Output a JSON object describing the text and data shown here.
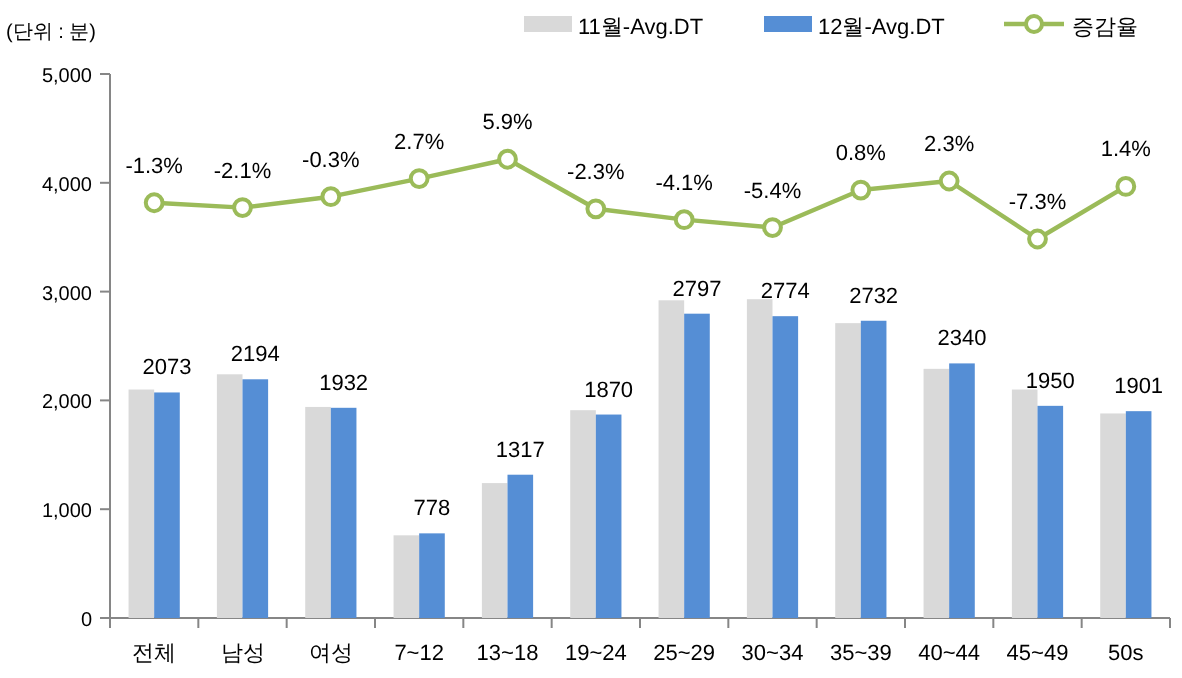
{
  "chart_data": {
    "type": "bar",
    "annotations": [
      "(단위 : 분)"
    ],
    "categories": [
      "전체",
      "남성",
      "여성",
      "7~12",
      "13~18",
      "19~24",
      "25~29",
      "30~34",
      "35~39",
      "40~44",
      "45~49",
      "50s"
    ],
    "series": [
      {
        "name": "11월-Avg.DT",
        "color": "#d9d9d9",
        "values": [
          2100,
          2240,
          1940,
          760,
          1240,
          1910,
          2920,
          2930,
          2710,
          2290,
          2100,
          1880
        ]
      },
      {
        "name": "12월-Avg.DT",
        "color": "#558ed5",
        "values": [
          2073,
          2194,
          1932,
          778,
          1317,
          1870,
          2797,
          2774,
          2732,
          2340,
          1950,
          1901
        ],
        "value_labels": [
          "2073",
          "2194",
          "1932",
          "778",
          "1317",
          "1870",
          "2797",
          "2774",
          "2732",
          "2340",
          "1950",
          "1901"
        ]
      },
      {
        "name": "증감율",
        "type": "line",
        "axis": "y2",
        "color": "#9bbb59",
        "marker": "circle",
        "values": [
          -1.3,
          -2.1,
          -0.3,
          2.7,
          5.9,
          -2.3,
          -4.1,
          -5.4,
          0.8,
          2.3,
          -7.3,
          1.4
        ],
        "value_labels": [
          "-1.3%",
          "-2.1%",
          "-0.3%",
          "2.7%",
          "5.9%",
          "-2.3%",
          "-4.1%",
          "-5.4%",
          "0.8%",
          "2.3%",
          "-7.3%",
          "1.4%"
        ]
      }
    ],
    "ylim": [
      0,
      5000
    ],
    "yticks": [
      {
        "value": 0,
        "label": "0"
      },
      {
        "value": 1000,
        "label": "1,000"
      },
      {
        "value": 2000,
        "label": "2,000"
      },
      {
        "value": 3000,
        "label": "3,000"
      },
      {
        "value": 4000,
        "label": "4,000"
      },
      {
        "value": 5000,
        "label": "5,000"
      }
    ],
    "y2lim": [
      -70,
      20
    ],
    "tick_labels": "y",
    "grid": false,
    "legend": "top right"
  }
}
